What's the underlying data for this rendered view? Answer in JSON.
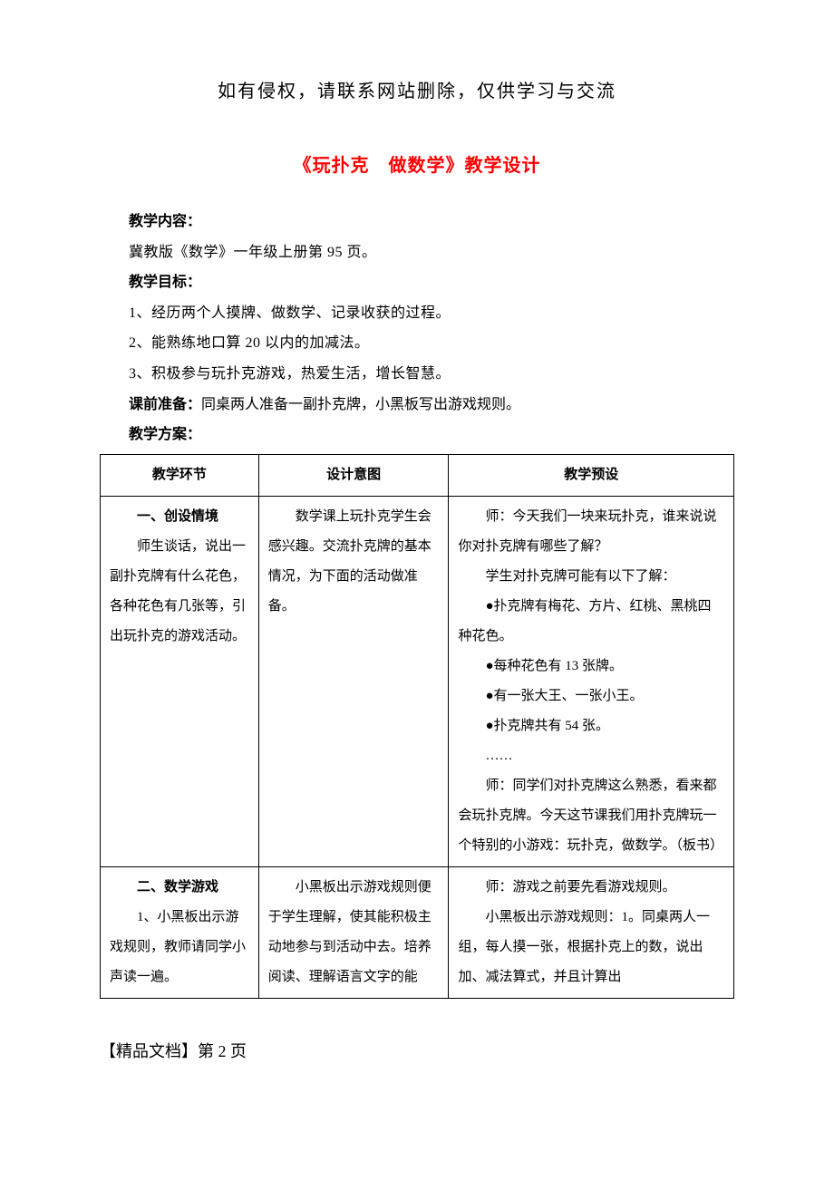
{
  "header_notice": "如有侵权，请联系网站删除，仅供学习与交流",
  "doc_title": "《玩扑克　做数学》教学设计",
  "sections": {
    "content_label": "教学内容：",
    "content_text": "冀教版《数学》一年级上册第 95 页。",
    "goals_label": "教学目标：",
    "goal_1": "1、经历两个人摸牌、做数学、记录收获的过程。",
    "goal_2": "2、能熟练地口算 20 以内的加减法。",
    "goal_3": "3、积极参与玩扑克游戏，热爱生活，增长智慧。",
    "preclass_label": "课前准备：",
    "preclass_text": "同桌两人准备一副扑克牌，小黑板写出游戏规则。",
    "plan_label": "教学方案："
  },
  "table": {
    "headers": {
      "c1": "教学环节",
      "c2": "设计意图",
      "c3": "教学预设"
    },
    "row1": {
      "c1_h": "一、创设情境",
      "c1_p": "师生谈话，说出一副扑克牌有什么花色，各种花色有几张等，引出玩扑克的游戏活动。",
      "c2_p": "数学课上玩扑克学生会感兴趣。交流扑克牌的基本情况，为下面的活动做准备。",
      "c3_1": "师：今天我们一块来玩扑克，谁来说说你对扑克牌有哪些了解？",
      "c3_2": "学生对扑克牌可能有以下了解：",
      "c3_3": "●扑克牌有梅花、方片、红桃、黑桃四种花色。",
      "c3_4": "●每种花色有 13 张牌。",
      "c3_5": "●有一张大王、一张小王。",
      "c3_6": "●扑克牌共有 54 张。",
      "c3_7": "……",
      "c3_8": "师：同学们对扑克牌这么熟悉，看来都会玩扑克牌。今天这节课我们用扑克牌玩一个特别的小游戏：玩扑克，做数学。（板书）"
    },
    "row2": {
      "c1_h": "二、数学游戏",
      "c1_p": "1、小黑板出示游戏规则，教师请同学小声读一遍。",
      "c2_p": "小黑板出示游戏规则便于学生理解，使其能积极主动地参与到活动中去。培养阅读、理解语言文字的能",
      "c3_1": "师：游戏之前要先看游戏规则。",
      "c3_2": "小黑板出示游戏规则：1。同桌两人一组，每人摸一张，根据扑克上的数，说出加、减法算式，并且计算出"
    }
  },
  "footer": "【精品文档】第 2 页"
}
